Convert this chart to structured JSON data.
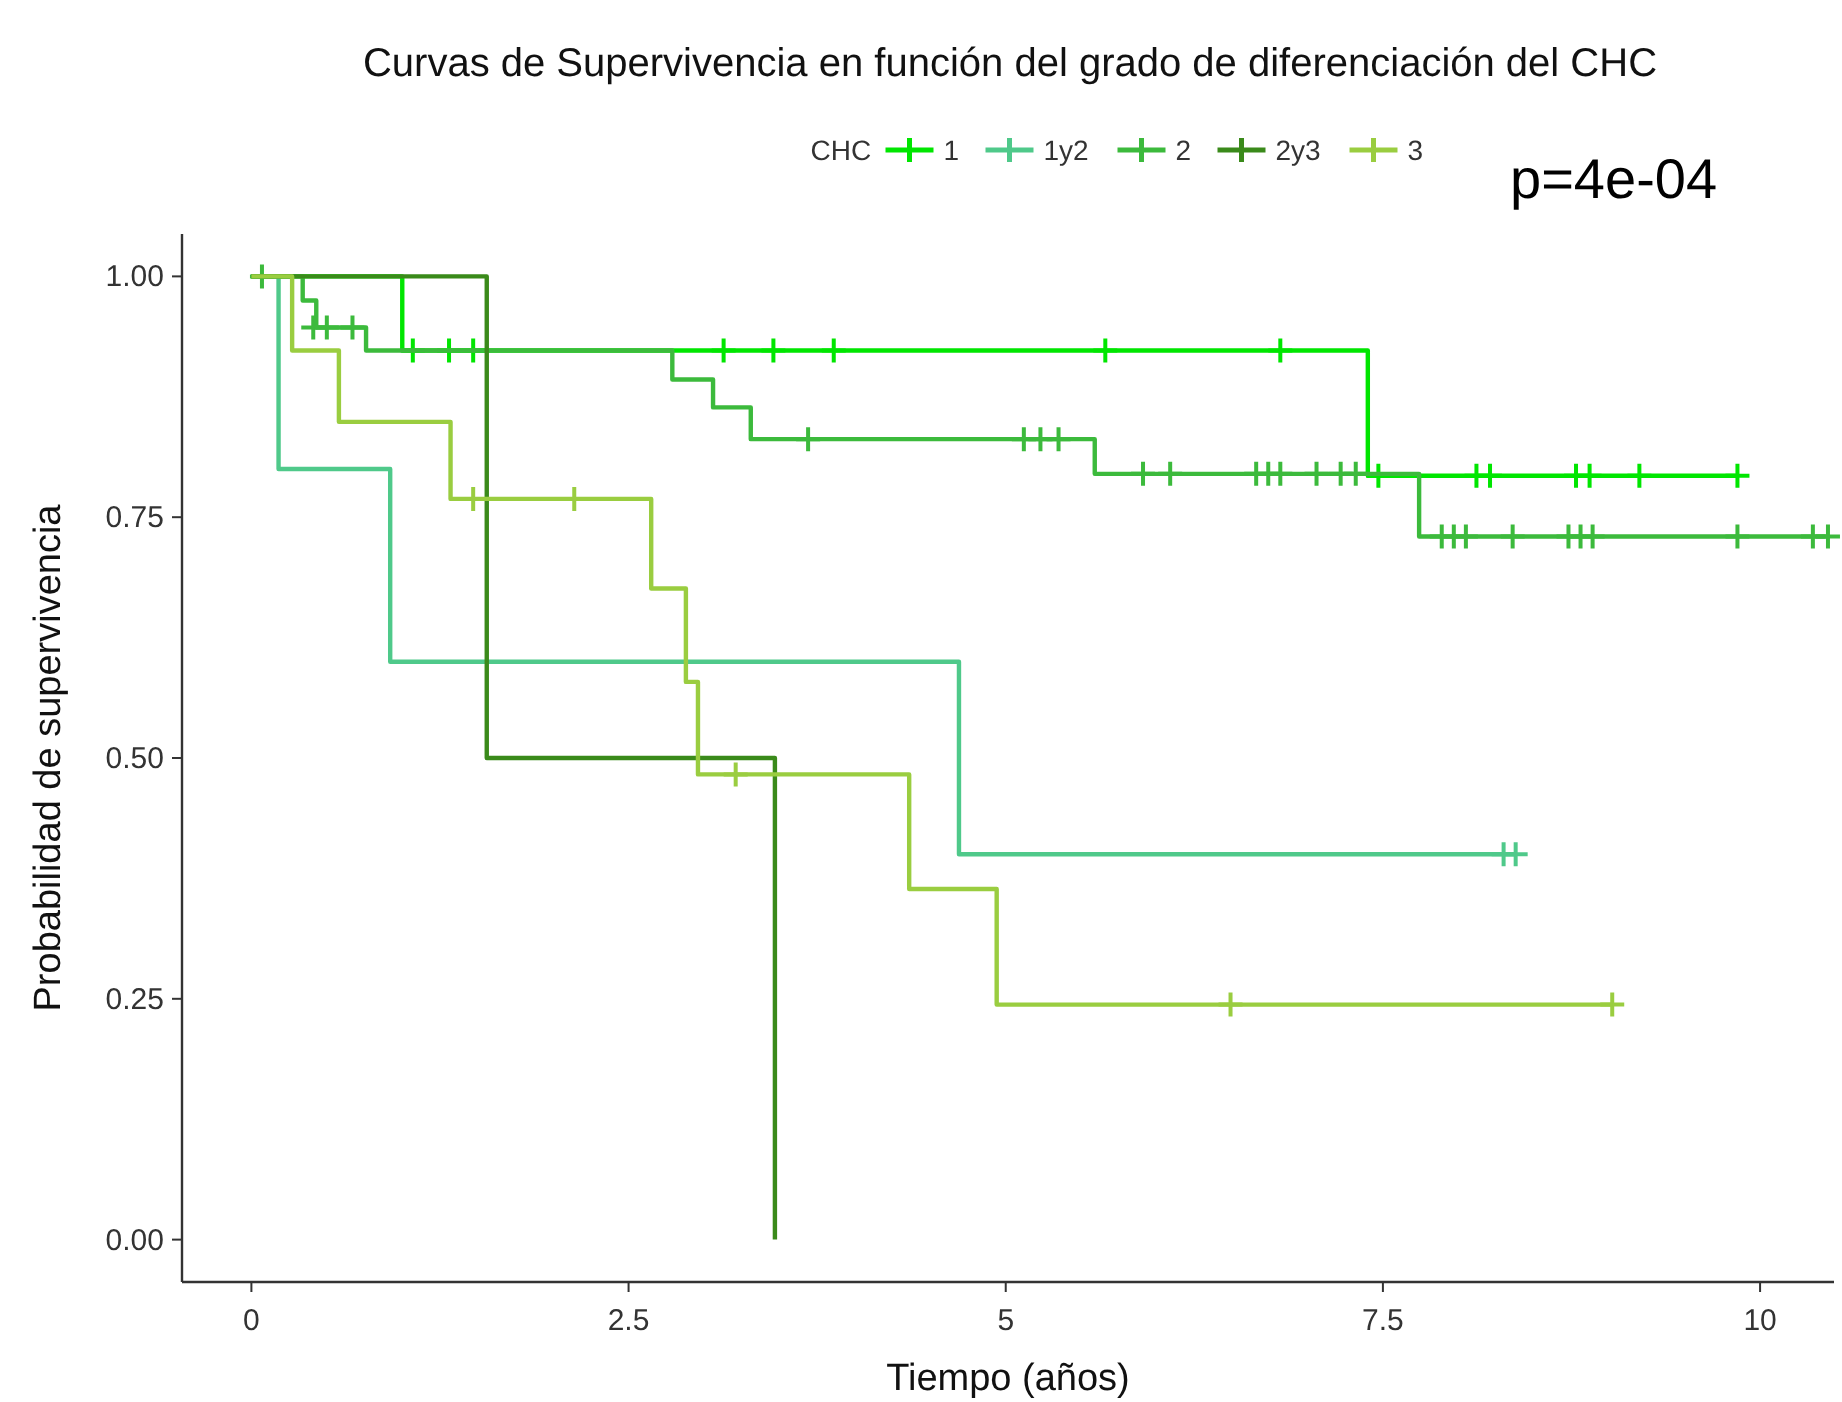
{
  "chart_data": {
    "type": "step",
    "title": "Curvas de Supervivencia en función del grado de diferenciación del CHC",
    "xlabel": "Tiempo (años)",
    "ylabel": "Probabilidad de supervivencia",
    "legend_title": "CHC",
    "legend": "top",
    "annotations": [
      "p=4e-04"
    ],
    "grid": false,
    "line_style": "solid",
    "xlim": [
      -0.46,
      10.49
    ],
    "xticks": [
      0,
      2.5,
      5,
      7.5,
      10
    ],
    "ylim": [
      -0.044,
      1.044
    ],
    "yticks": [
      {
        "value": 0,
        "label": "0.00"
      },
      {
        "value": 0.25,
        "label": "0.25"
      },
      {
        "value": 0.5,
        "label": "0.50"
      },
      {
        "value": 0.75,
        "label": "0.75"
      },
      {
        "value": 1,
        "label": "1.00"
      }
    ],
    "series": [
      {
        "name": "1",
        "color": "#00e600",
        "marker": "none",
        "x": [
          0,
          1.0,
          7.4,
          9.85
        ],
        "values": [
          1,
          0.923,
          0.793,
          0.793
        ]
      },
      {
        "name": "1y2",
        "color": "#4fc98a",
        "marker": "none",
        "x": [
          0,
          0.18,
          0.92,
          4.69,
          8.38
        ],
        "values": [
          1,
          0.8,
          0.6,
          0.4,
          0.4
        ]
      },
      {
        "name": "2",
        "color": "#3cba3c",
        "marker": "none",
        "x": [
          0,
          0.34,
          0.43,
          0.76,
          2.79,
          3.06,
          3.31,
          5.59,
          7.74,
          10.45
        ],
        "values": [
          1,
          0.975,
          0.947,
          0.923,
          0.893,
          0.864,
          0.831,
          0.795,
          0.73,
          0.73
        ]
      },
      {
        "name": "2y3",
        "color": "#3a8a1a",
        "marker": "none",
        "x": [
          0,
          1.56,
          3.47
        ],
        "values": [
          1,
          0.5,
          0
        ]
      },
      {
        "name": "3",
        "color": "#9acd40",
        "marker": "none",
        "x": [
          0,
          0.27,
          0.58,
          1.32,
          2.65,
          2.88,
          2.96,
          4.36,
          4.94,
          9.02
        ],
        "values": [
          1,
          0.923,
          0.849,
          0.769,
          0.676,
          0.579,
          0.483,
          0.364,
          0.244,
          0.244
        ]
      },
      {
        "type": "scatter",
        "color": "#00e600",
        "marker": "cross",
        "x": [
          1.07,
          1.31,
          1.47,
          3.13,
          3.46,
          3.86,
          5.66,
          6.82,
          7.47,
          8.12,
          8.21,
          8.78,
          8.87,
          9.2,
          9.85
        ],
        "values": [
          0.923,
          0.923,
          0.923,
          0.923,
          0.923,
          0.923,
          0.923,
          0.923,
          0.793,
          0.793,
          0.793,
          0.793,
          0.793,
          0.793,
          0.793
        ]
      },
      {
        "type": "scatter",
        "color": "#4fc98a",
        "marker": "cross",
        "x": [
          8.3,
          8.38
        ],
        "values": [
          0.4,
          0.4
        ]
      },
      {
        "type": "scatter",
        "color": "#3cba3c",
        "marker": "cross",
        "x": [
          0.07,
          0.41,
          0.5,
          0.67,
          3.69,
          5.12,
          5.23,
          5.35,
          5.91,
          6.09,
          6.66,
          6.74,
          6.82,
          7.06,
          7.22,
          7.32,
          7.89,
          7.97,
          8.05,
          8.36,
          8.73,
          8.81,
          8.89,
          9.85,
          10.35,
          10.45
        ],
        "values": [
          1,
          0.947,
          0.947,
          0.947,
          0.831,
          0.831,
          0.831,
          0.831,
          0.795,
          0.795,
          0.795,
          0.795,
          0.795,
          0.795,
          0.795,
          0.795,
          0.73,
          0.73,
          0.73,
          0.73,
          0.73,
          0.73,
          0.73,
          0.73,
          0.73,
          0.73
        ]
      },
      {
        "type": "scatter",
        "color": "#9acd40",
        "marker": "cross",
        "x": [
          1.47,
          2.14,
          3.21,
          6.49,
          9.02
        ],
        "values": [
          0.769,
          0.769,
          0.483,
          0.244,
          0.244
        ]
      }
    ]
  }
}
